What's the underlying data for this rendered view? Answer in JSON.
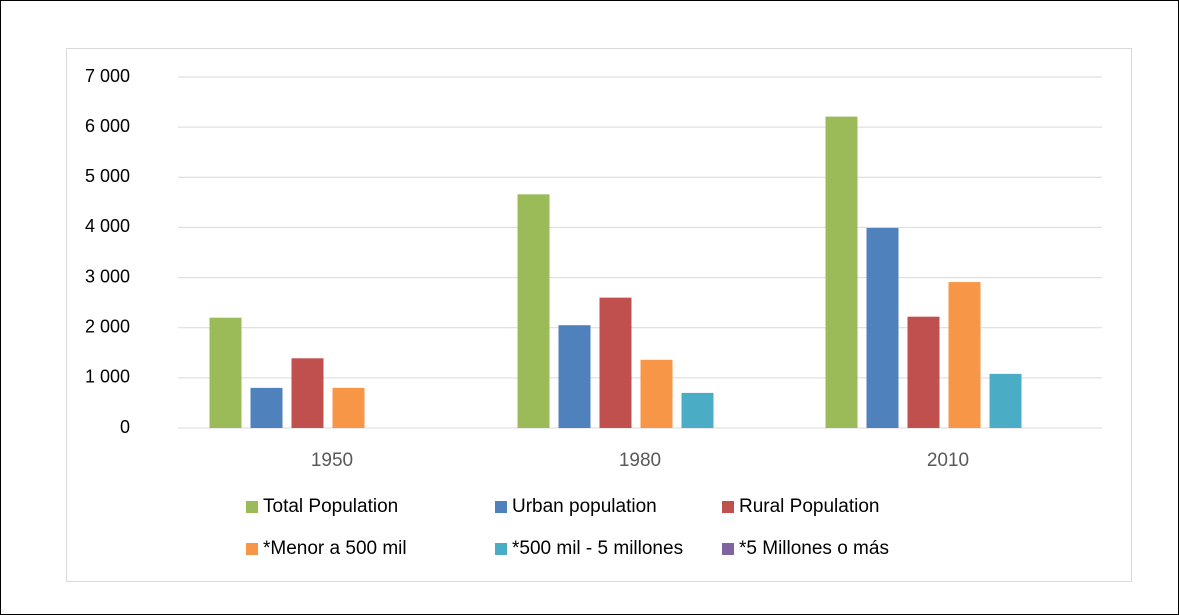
{
  "chart_data": {
    "type": "bar",
    "categories": [
      "1950",
      "1980",
      "2010"
    ],
    "series": [
      {
        "name": "Total Population",
        "color": "#9bbb59",
        "values": [
          2200,
          4660,
          6210
        ]
      },
      {
        "name": "Urban population",
        "color": "#4f81bd",
        "values": [
          800,
          2050,
          3990
        ]
      },
      {
        "name": "Rural Population",
        "color": "#c0504d",
        "values": [
          1390,
          2600,
          2220
        ]
      },
      {
        "name": "*Menor a 500 mil",
        "color": "#f79646",
        "values": [
          800,
          1360,
          2910
        ]
      },
      {
        "name": "*500 mil - 5 millones",
        "color": "#4bacc6",
        "values": [
          null,
          700,
          1080
        ]
      },
      {
        "name": "*5 Millones o más",
        "color": "#8064a2",
        "values": [
          null,
          null,
          null
        ]
      }
    ],
    "ylim": [
      0,
      7000
    ],
    "yticks": [
      0,
      {
        "value": 1000,
        "label": "1 000"
      },
      {
        "value": 2000,
        "label": "2 000"
      },
      {
        "value": 3000,
        "label": "3 000"
      },
      {
        "value": 4000,
        "label": "4 000"
      },
      {
        "value": 5000,
        "label": "5 000"
      },
      {
        "value": 6000,
        "label": "6 000"
      },
      {
        "value": 7000,
        "label": "7 000"
      }
    ],
    "grid": true
  }
}
